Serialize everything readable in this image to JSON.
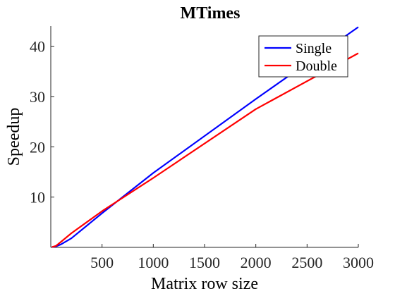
{
  "chart_data": {
    "type": "line",
    "title": "MTimes",
    "xlabel": "Matrix row size",
    "ylabel": "Speedup",
    "xlim": [
      0,
      3000
    ],
    "ylim": [
      0,
      44
    ],
    "xticks": [
      500,
      1000,
      1500,
      2000,
      2500,
      3000
    ],
    "yticks": [
      10,
      20,
      30,
      40
    ],
    "grid": false,
    "legend_position": "top-right",
    "series": [
      {
        "name": "Single",
        "color": "#0000ff",
        "x": [
          10,
          50,
          100,
          200,
          500,
          1000,
          2000,
          3000
        ],
        "y": [
          0.05,
          0.2,
          0.6,
          1.8,
          6.8,
          14.8,
          29.5,
          43.8
        ]
      },
      {
        "name": "Double",
        "color": "#ff0000",
        "x": [
          10,
          50,
          100,
          200,
          500,
          1000,
          2000,
          3000
        ],
        "y": [
          0.05,
          0.3,
          1.1,
          2.8,
          7.2,
          13.8,
          27.5,
          38.6
        ]
      }
    ]
  }
}
